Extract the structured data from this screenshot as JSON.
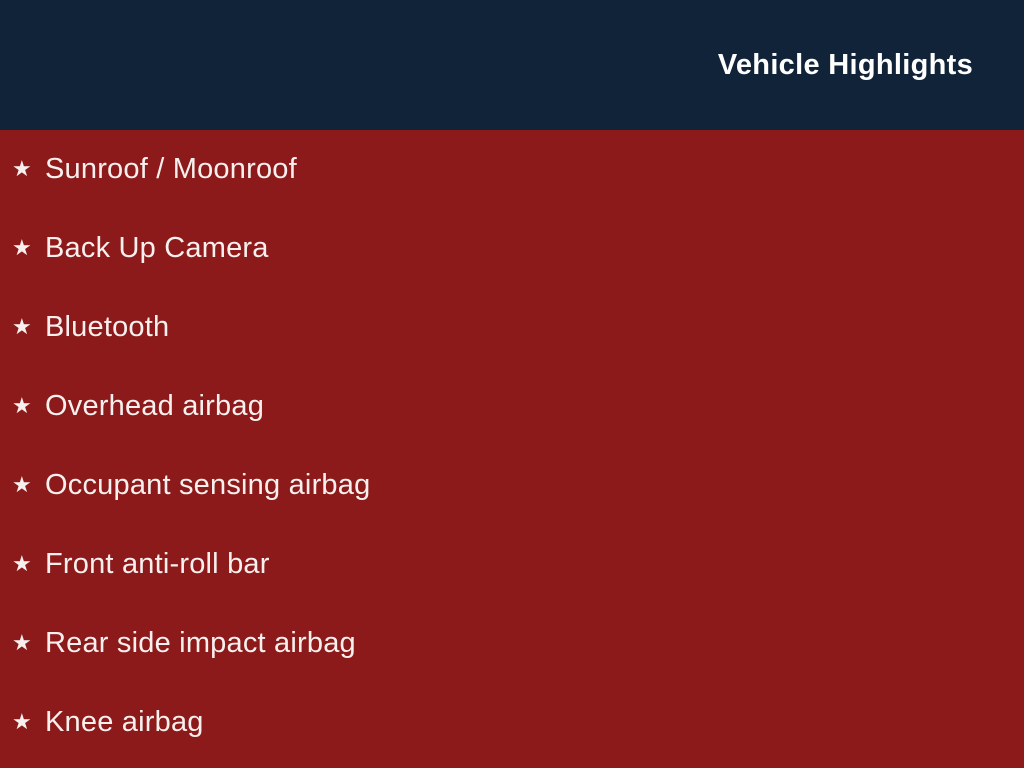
{
  "colors": {
    "header-bg": "#112338",
    "body-bg": "#8c1a1a",
    "title-color": "#ffffff",
    "item-color": "#f7f0ee"
  },
  "header": {
    "title": "Vehicle Highlights"
  },
  "list": {
    "star_glyph": "★",
    "items": [
      "Sunroof / Moonroof",
      "Back Up Camera",
      "Bluetooth",
      "Overhead airbag",
      "Occupant sensing airbag",
      "Front anti-roll bar",
      "Rear side impact airbag",
      "Knee airbag"
    ]
  }
}
